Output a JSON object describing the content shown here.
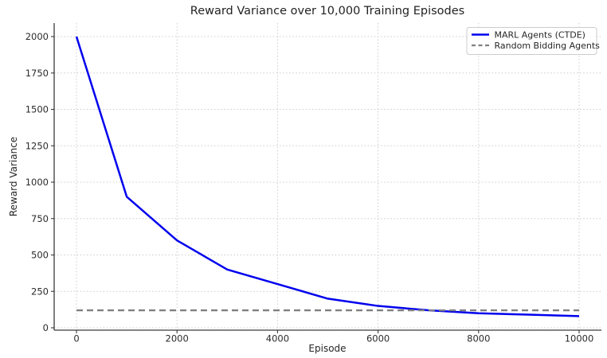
{
  "title": "Reward Variance over 10,000 Training Episodes",
  "chart_data": {
    "type": "line",
    "title": "Reward Variance over 10,000 Training Episodes",
    "xlabel": "Episode",
    "ylabel": "Reward Variance",
    "x": [
      0,
      1000,
      2000,
      3000,
      4000,
      5000,
      6000,
      7000,
      8000,
      9000,
      10000
    ],
    "series": [
      {
        "name": "MARL Agents (CTDE)",
        "color": "#0000ee",
        "line_style": "solid",
        "line_width": 2.5,
        "values": [
          2000,
          900,
          600,
          400,
          300,
          200,
          150,
          120,
          100,
          90,
          80
        ]
      },
      {
        "name": "Random Bidding Agents",
        "color": "#808080",
        "line_style": "dashed",
        "line_width": 2.3,
        "values": [
          120,
          120,
          120,
          120,
          120,
          120,
          120,
          120,
          120,
          120,
          120
        ]
      }
    ],
    "xticks": [
      0,
      2000,
      4000,
      6000,
      8000,
      10000
    ],
    "yticks": [
      0,
      250,
      500,
      750,
      1000,
      1250,
      1500,
      1750,
      2000
    ],
    "xlim": [
      -500,
      10500
    ],
    "ylim": [
      -25,
      2100
    ],
    "grid": true,
    "grid_style": "dotted",
    "grid_color": "#cccccc",
    "legend_position": "upper right"
  }
}
